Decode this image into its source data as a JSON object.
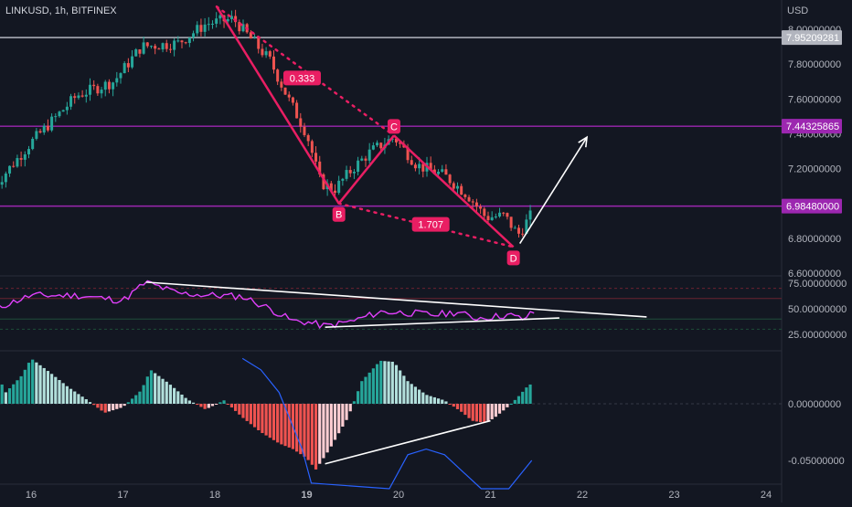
{
  "header": {
    "symbol": "LINKUSD, 1h, BITFINEX",
    "currency": "USD"
  },
  "colors": {
    "background": "#131722",
    "candle_up": "#26a69a",
    "candle_down": "#ef5350",
    "pattern": "#e91e63",
    "level_purple": "#9c27b0",
    "rsi": "#e040fb",
    "signal": "#2962ff",
    "level_gray": "#b2b5be",
    "trendline": "#ffffff"
  },
  "chart_data": [
    {
      "type": "candlestick",
      "title": "LINKUSD, 1h, BITFINEX",
      "ylabel": "USD",
      "ylim": [
        6.6,
        8.0
      ],
      "yticks": [
        "8.00000000",
        "7.80000000",
        "7.60000000",
        "7.40000000",
        "7.20000000",
        "7.00000000",
        "6.80000000",
        "6.60000000"
      ],
      "xticks": [
        "16",
        "17",
        "18",
        "19",
        "20",
        "21",
        "22",
        "23",
        "24"
      ],
      "price_path": [
        {
          "day": 15.6,
          "price": 7.1
        },
        {
          "day": 16.0,
          "price": 7.35
        },
        {
          "day": 16.5,
          "price": 7.62
        },
        {
          "day": 16.9,
          "price": 7.7
        },
        {
          "day": 17.2,
          "price": 7.9
        },
        {
          "day": 17.6,
          "price": 7.92
        },
        {
          "day": 17.9,
          "price": 8.03
        },
        {
          "day": 18.2,
          "price": 8.06
        },
        {
          "day": 18.6,
          "price": 7.82
        },
        {
          "day": 18.8,
          "price": 7.6
        },
        {
          "day": 19.0,
          "price": 7.4
        },
        {
          "day": 19.15,
          "price": 7.12
        },
        {
          "day": 19.3,
          "price": 7.08
        },
        {
          "day": 19.5,
          "price": 7.2
        },
        {
          "day": 19.7,
          "price": 7.3
        },
        {
          "day": 19.95,
          "price": 7.38
        },
        {
          "day": 20.2,
          "price": 7.22
        },
        {
          "day": 20.5,
          "price": 7.16
        },
        {
          "day": 20.75,
          "price": 7.05
        },
        {
          "day": 20.95,
          "price": 6.92
        },
        {
          "day": 21.15,
          "price": 6.93
        },
        {
          "day": 21.3,
          "price": 6.82
        },
        {
          "day": 21.45,
          "price": 6.94
        }
      ],
      "horizontal_levels": [
        {
          "price": 7.95209281,
          "label": "7.95209281",
          "color": "#b2b5be"
        },
        {
          "price": 7.44325865,
          "label": "7.44325865",
          "color": "#9c27b0"
        },
        {
          "price": 6.9848,
          "label": "6.98480000",
          "color": "#9c27b0"
        }
      ],
      "pattern_points": [
        {
          "label": "",
          "day": 18.02,
          "price": 8.13
        },
        {
          "label": "B",
          "day": 19.35,
          "price": 7.0
        },
        {
          "label": "C",
          "day": 19.95,
          "price": 7.39
        },
        {
          "label": "D",
          "day": 21.25,
          "price": 6.75
        }
      ],
      "ratios": [
        {
          "label": "0.333",
          "day": 18.95,
          "price": 7.72
        },
        {
          "label": "1.707",
          "day": 20.35,
          "price": 6.88
        }
      ],
      "projection_arrow": {
        "from": {
          "day": 21.32,
          "price": 6.77
        },
        "to": {
          "day": 22.05,
          "price": 7.38
        }
      }
    },
    {
      "type": "line",
      "series": [],
      "ylim": [
        20,
        80
      ],
      "yticks": [
        "75.00000000",
        "50.00000000",
        "25.00000000"
      ],
      "bands": [
        70,
        60,
        40,
        30
      ],
      "rsi_path": [
        {
          "day": 15.6,
          "value": 50
        },
        {
          "day": 16.0,
          "value": 63
        },
        {
          "day": 16.5,
          "value": 63
        },
        {
          "day": 17.0,
          "value": 58
        },
        {
          "day": 17.25,
          "value": 76
        },
        {
          "day": 17.6,
          "value": 65
        },
        {
          "day": 18.0,
          "value": 63
        },
        {
          "day": 18.3,
          "value": 62
        },
        {
          "day": 18.6,
          "value": 50
        },
        {
          "day": 18.85,
          "value": 38
        },
        {
          "day": 19.0,
          "value": 37
        },
        {
          "day": 19.2,
          "value": 33
        },
        {
          "day": 19.5,
          "value": 38
        },
        {
          "day": 19.8,
          "value": 47
        },
        {
          "day": 20.1,
          "value": 46
        },
        {
          "day": 20.4,
          "value": 44
        },
        {
          "day": 20.65,
          "value": 47
        },
        {
          "day": 20.8,
          "value": 41
        },
        {
          "day": 21.0,
          "value": 42
        },
        {
          "day": 21.2,
          "value": 44
        },
        {
          "day": 21.35,
          "value": 40
        },
        {
          "day": 21.5,
          "value": 48
        }
      ],
      "trendlines": [
        {
          "x1": 17.25,
          "y1": 76,
          "x2": 22.7,
          "y2": 42
        },
        {
          "x1": 19.2,
          "y1": 32,
          "x2": 21.75,
          "y2": 41
        }
      ]
    },
    {
      "type": "bar",
      "series": [],
      "ylim": [
        -0.075,
        0.075
      ],
      "yticks": [
        "0.00000000",
        "-0.05000000"
      ],
      "histogram": [
        {
          "day": 15.7,
          "value": 0.008
        },
        {
          "day": 15.9,
          "value": 0.025
        },
        {
          "day": 16.0,
          "value": 0.04
        },
        {
          "day": 16.2,
          "value": 0.028
        },
        {
          "day": 16.4,
          "value": 0.015
        },
        {
          "day": 16.6,
          "value": 0.004
        },
        {
          "day": 16.8,
          "value": -0.008
        },
        {
          "day": 17.0,
          "value": -0.003
        },
        {
          "day": 17.2,
          "value": 0.012
        },
        {
          "day": 17.3,
          "value": 0.03
        },
        {
          "day": 17.5,
          "value": 0.018
        },
        {
          "day": 17.7,
          "value": 0.004
        },
        {
          "day": 17.9,
          "value": -0.005
        },
        {
          "day": 18.1,
          "value": 0.003
        },
        {
          "day": 18.3,
          "value": -0.012
        },
        {
          "day": 18.5,
          "value": -0.025
        },
        {
          "day": 18.7,
          "value": -0.035
        },
        {
          "day": 18.85,
          "value": -0.04
        },
        {
          "day": 19.0,
          "value": -0.048
        },
        {
          "day": 19.1,
          "value": -0.058
        },
        {
          "day": 19.25,
          "value": -0.04
        },
        {
          "day": 19.45,
          "value": -0.012
        },
        {
          "day": 19.6,
          "value": 0.02
        },
        {
          "day": 19.8,
          "value": 0.038
        },
        {
          "day": 19.95,
          "value": 0.037
        },
        {
          "day": 20.1,
          "value": 0.02
        },
        {
          "day": 20.3,
          "value": 0.008
        },
        {
          "day": 20.5,
          "value": 0.003
        },
        {
          "day": 20.7,
          "value": -0.008
        },
        {
          "day": 20.8,
          "value": -0.015
        },
        {
          "day": 20.95,
          "value": -0.017
        },
        {
          "day": 21.05,
          "value": -0.012
        },
        {
          "day": 21.2,
          "value": -0.002
        },
        {
          "day": 21.3,
          "value": 0.006
        },
        {
          "day": 21.42,
          "value": 0.017
        }
      ],
      "signal_path": [
        {
          "day": 18.3,
          "value": 0.04
        },
        {
          "day": 18.5,
          "value": 0.03
        },
        {
          "day": 18.7,
          "value": 0.01
        },
        {
          "day": 18.85,
          "value": -0.02
        },
        {
          "day": 18.95,
          "value": -0.04
        },
        {
          "day": 19.05,
          "value": -0.07
        },
        {
          "day": 19.9,
          "value": -0.075
        },
        {
          "day": 20.1,
          "value": -0.045
        },
        {
          "day": 20.3,
          "value": -0.04
        },
        {
          "day": 20.5,
          "value": -0.045
        },
        {
          "day": 20.7,
          "value": -0.06
        },
        {
          "day": 20.9,
          "value": -0.075
        },
        {
          "day": 21.2,
          "value": -0.075
        },
        {
          "day": 21.45,
          "value": -0.05
        }
      ],
      "trendline": {
        "x1": 19.2,
        "y1": -0.053,
        "x2": 21.0,
        "y2": -0.015
      }
    }
  ]
}
